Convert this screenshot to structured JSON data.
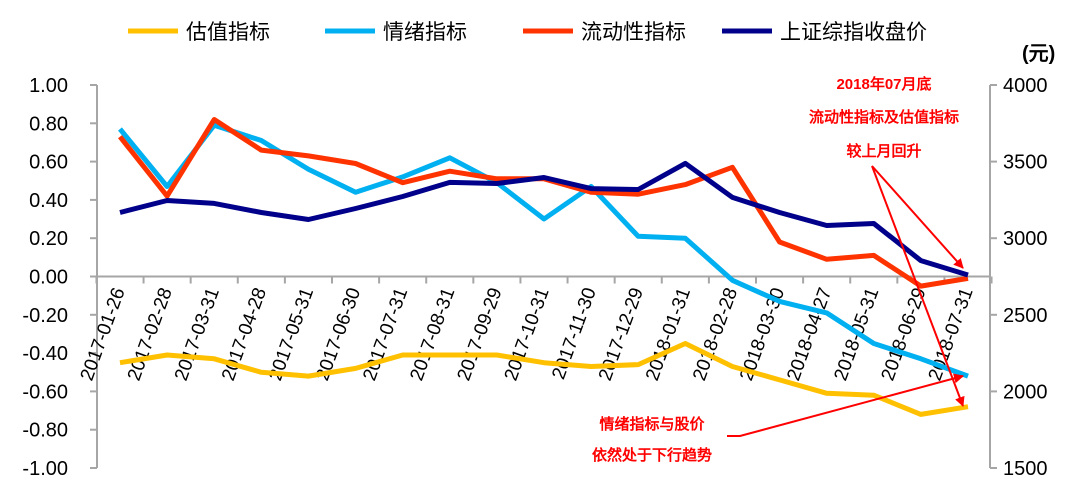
{
  "chart_data": {
    "type": "line",
    "categories": [
      "2017-01-26",
      "2017-02-28",
      "2017-03-31",
      "2017-04-28",
      "2017-05-31",
      "2017-06-30",
      "2017-07-31",
      "2017-08-31",
      "2017-09-29",
      "2017-10-31",
      "2017-11-30",
      "2017-12-29",
      "2018-01-31",
      "2018-02-28",
      "2018-03-30",
      "2018-04-27",
      "2018-05-31",
      "2018-06-29",
      "2018-07-31"
    ],
    "series": [
      {
        "name": "估值指标",
        "axis": "left",
        "color": "#FFC000",
        "values": [
          -0.45,
          -0.41,
          -0.43,
          -0.5,
          -0.52,
          -0.48,
          -0.41,
          -0.41,
          -0.41,
          -0.45,
          -0.47,
          -0.46,
          -0.35,
          -0.47,
          -0.54,
          -0.61,
          -0.62,
          -0.72,
          -0.68
        ]
      },
      {
        "name": "情绪指标",
        "axis": "left",
        "color": "#00B0F0",
        "values": [
          0.77,
          0.47,
          0.79,
          0.71,
          0.56,
          0.44,
          0.52,
          0.62,
          0.49,
          0.3,
          0.47,
          0.21,
          0.2,
          -0.02,
          -0.13,
          -0.19,
          -0.35,
          -0.43,
          -0.52
        ]
      },
      {
        "name": "流动性指标",
        "axis": "left",
        "color": "#FF3300",
        "values": [
          0.73,
          0.42,
          0.82,
          0.66,
          0.63,
          0.59,
          0.49,
          0.55,
          0.51,
          0.51,
          0.44,
          0.43,
          0.48,
          0.57,
          0.18,
          0.09,
          0.11,
          -0.05,
          -0.01
        ]
      },
      {
        "name": "上证综指收盘价",
        "axis": "right",
        "color": "#00008B",
        "values": [
          3168,
          3246,
          3227,
          3168,
          3122,
          3194,
          3272,
          3364,
          3357,
          3396,
          3324,
          3318,
          3488,
          3266,
          3168,
          3083,
          3096,
          2854,
          2760
        ]
      }
    ],
    "left_axis": {
      "ylim": [
        -1.0,
        1.0
      ],
      "ticks": [
        "1.00",
        "0.80",
        "0.60",
        "0.40",
        "0.20",
        "0.00",
        "-0.20",
        "-0.40",
        "-0.60",
        "-0.80",
        "-1.00"
      ]
    },
    "right_axis": {
      "label": "(元)",
      "ylim": [
        1500,
        4000
      ],
      "ticks": [
        "4000",
        "3500",
        "3000",
        "2500",
        "2000",
        "1500"
      ]
    },
    "legend_placement": "top",
    "grid": false,
    "annotations": [
      {
        "lines": [
          "2018年07月底",
          "流动性指标及估值指标",
          "较上月回升"
        ],
        "color": "#FF0000"
      },
      {
        "lines": [
          "情绪指标与股价",
          "依然处于下行趋势"
        ],
        "color": "#FF0000"
      }
    ]
  }
}
